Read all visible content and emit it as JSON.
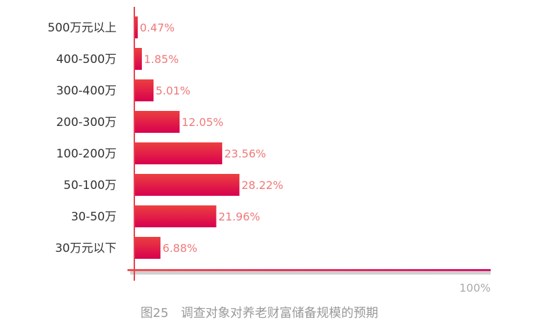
{
  "chart_data": {
    "type": "bar",
    "orientation": "horizontal",
    "title": "",
    "caption": "图25　调查对象对养老财富储备规模的预期",
    "categories": [
      "500万元以上",
      "400-500万",
      "300-400万",
      "200-300万",
      "100-200万",
      "50-100万",
      "30-50万",
      "30万元以下"
    ],
    "values": [
      0.47,
      1.85,
      5.01,
      12.05,
      23.56,
      28.22,
      21.96,
      6.88
    ],
    "value_labels": [
      "0.47%",
      "1.85%",
      "5.01%",
      "12.05%",
      "23.56%",
      "28.22%",
      "21.96%",
      "6.88%"
    ],
    "x_tick_label": "100%",
    "xlim": [
      0,
      100
    ],
    "grid": false,
    "colors": {
      "bar_top": "#ec4040",
      "bar_bottom": "#d8004e",
      "axis": "#e0305a",
      "value_label": "#f07878"
    }
  }
}
